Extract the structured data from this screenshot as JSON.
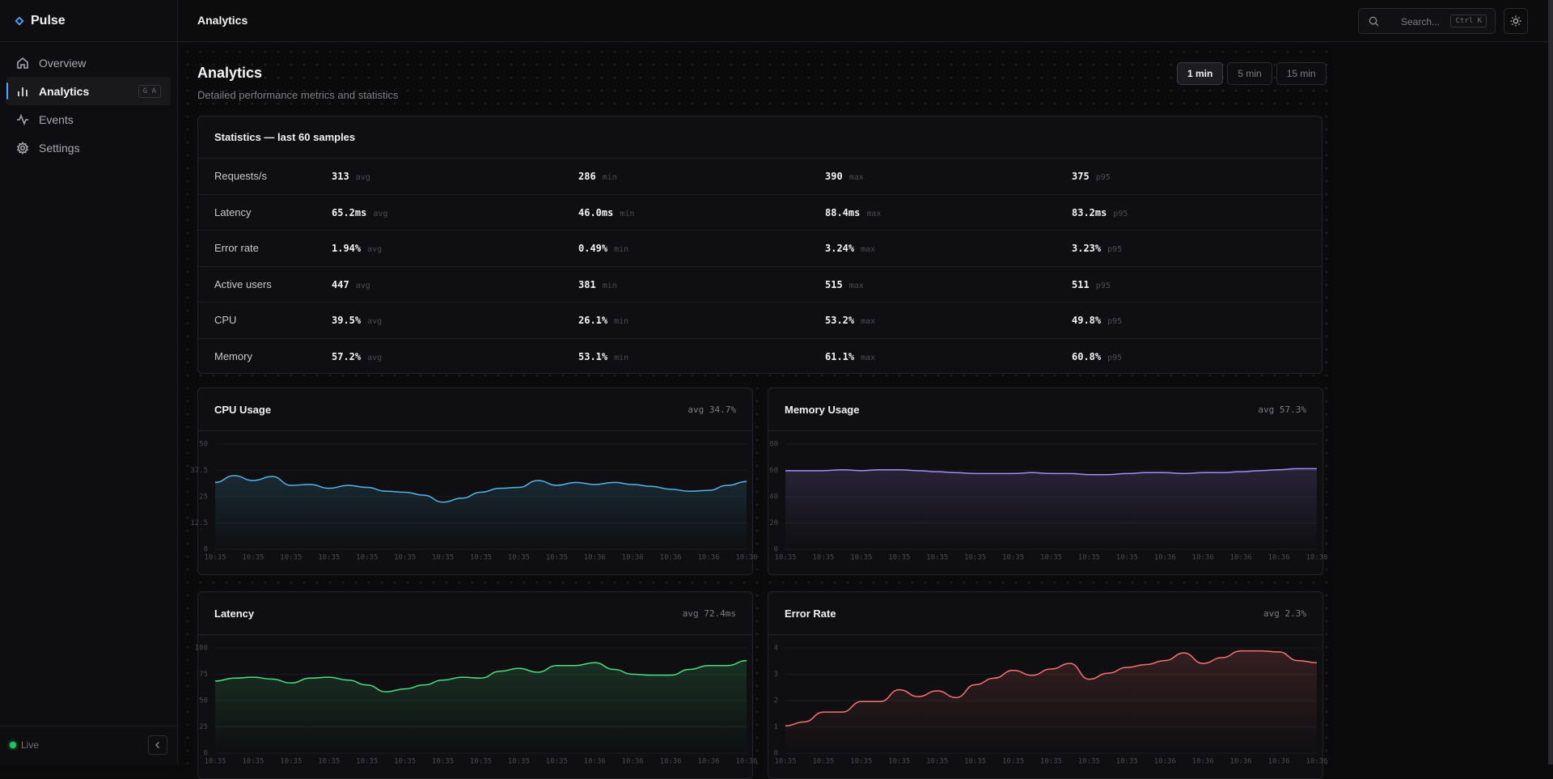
{
  "sidebar": {
    "brand": "Pulse",
    "nav": [
      {
        "label": "Overview"
      },
      {
        "label": "Analytics",
        "shortcut": "G A",
        "active": true
      },
      {
        "label": "Events"
      },
      {
        "label": "Settings"
      }
    ],
    "status": "Live"
  },
  "topbar": {
    "title": "Analytics",
    "search": "Search...",
    "shortcut": "Ctrl K"
  },
  "page": {
    "title": "Analytics",
    "subtitle": "Detailed performance metrics and statistics",
    "ranges": [
      "1 min",
      "5 min",
      "15 min"
    ],
    "selected_range": 0
  },
  "stats": {
    "title": "Statistics — last 60 samples",
    "stat_labels": [
      "avg",
      "min",
      "max",
      "p95"
    ],
    "rows": [
      {
        "label": "Requests/s",
        "values": [
          "313",
          "286",
          "390",
          "375"
        ]
      },
      {
        "label": "Latency",
        "values": [
          "65.2ms",
          "46.0ms",
          "88.4ms",
          "83.2ms"
        ]
      },
      {
        "label": "Error rate",
        "values": [
          "1.94%",
          "0.49%",
          "3.24%",
          "3.23%"
        ]
      },
      {
        "label": "Active users",
        "values": [
          "447",
          "381",
          "515",
          "511"
        ]
      },
      {
        "label": "CPU",
        "values": [
          "39.5%",
          "26.1%",
          "53.2%",
          "49.8%"
        ]
      },
      {
        "label": "Memory",
        "values": [
          "57.2%",
          "53.1%",
          "61.1%",
          "60.8%"
        ]
      }
    ]
  },
  "chart_data": [
    {
      "type": "line",
      "title": "CPU Usage",
      "summary": "avg 34.7%",
      "color": "#4fb6ea",
      "grid": true,
      "categories": [
        "10:35",
        null,
        "10:35",
        null,
        "10:35",
        null,
        "10:35",
        null,
        "10:35",
        null,
        "10:35",
        null,
        "10:35",
        null,
        "10:35",
        null,
        "10:35",
        null,
        "10:35",
        null,
        "10:36",
        null,
        "10:36",
        null,
        "10:36",
        null,
        "10:36",
        null,
        "10:36"
      ],
      "values": [
        31.8,
        35,
        32.7,
        34.6,
        30.4,
        30.8,
        29,
        30.4,
        29.4,
        27.6,
        27.1,
        25.7,
        22.4,
        24.3,
        27.1,
        29,
        29.4,
        32.7,
        30.4,
        31.8,
        30.8,
        31.8,
        30.8,
        29.9,
        28.5,
        27.6,
        28,
        30.4,
        32.2
      ],
      "ylim": [
        0,
        50
      ],
      "yticks": [
        0,
        12.5,
        25,
        37.5,
        50
      ]
    },
    {
      "type": "line",
      "title": "Memory Usage",
      "summary": "avg 57.3%",
      "color": "#a78bfa",
      "grid": true,
      "categories": [
        "10:35",
        null,
        "10:35",
        null,
        "10:35",
        null,
        "10:35",
        null,
        "10:35",
        null,
        "10:35",
        null,
        "10:35",
        null,
        "10:35",
        null,
        "10:35",
        null,
        "10:35",
        null,
        "10:36",
        null,
        "10:36",
        null,
        "10:36",
        null,
        "10:36",
        null,
        "10:36"
      ],
      "values": [
        59.8,
        59.8,
        59.8,
        60.5,
        59.8,
        60.5,
        60.5,
        59.8,
        59,
        58.3,
        57.6,
        57.6,
        57.6,
        58.3,
        57.6,
        57.6,
        56.8,
        56.8,
        57.6,
        58.3,
        58.3,
        57.6,
        58.3,
        58.3,
        59,
        59.8,
        60.5,
        61.3,
        61.3
      ],
      "ylim": [
        0,
        80
      ],
      "yticks": [
        0,
        20,
        40,
        60,
        80
      ]
    },
    {
      "type": "line",
      "title": "Latency",
      "summary": "avg 72.4ms",
      "color": "#4ade80",
      "grid": true,
      "categories": [
        "10:35",
        null,
        "10:35",
        null,
        "10:35",
        null,
        "10:35",
        null,
        "10:35",
        null,
        "10:35",
        null,
        "10:35",
        null,
        "10:35",
        null,
        "10:35",
        null,
        "10:35",
        null,
        "10:36",
        null,
        "10:36",
        null,
        "10:36",
        null,
        "10:36",
        null,
        "10:36"
      ],
      "values": [
        68.5,
        71.3,
        72.2,
        70.4,
        66.7,
        71.3,
        72.2,
        69.4,
        64.8,
        58.3,
        61.1,
        64.8,
        69.4,
        72.2,
        71.3,
        77.8,
        80.6,
        76.9,
        83.3,
        83.3,
        86.1,
        79.6,
        75,
        74.1,
        74.1,
        79.6,
        83.3,
        83.3,
        88
      ],
      "ylim": [
        0,
        100
      ],
      "yticks": [
        0,
        25,
        50,
        75,
        100
      ]
    },
    {
      "type": "line",
      "title": "Error Rate",
      "summary": "avg 2.3%",
      "color": "#f87171",
      "grid": true,
      "categories": [
        "10:35",
        null,
        "10:35",
        null,
        "10:35",
        null,
        "10:35",
        null,
        "10:35",
        null,
        "10:35",
        null,
        "10:35",
        null,
        "10:35",
        null,
        "10:35",
        null,
        "10:35",
        null,
        "10:36",
        null,
        "10:36",
        null,
        "10:36",
        null,
        "10:36",
        null,
        "10:36"
      ],
      "values": [
        1.04,
        1.19,
        1.56,
        1.56,
        1.96,
        1.96,
        2.41,
        2.15,
        2.37,
        2.11,
        2.6,
        2.85,
        3.15,
        2.96,
        3.2,
        3.41,
        2.81,
        3.04,
        3.26,
        3.37,
        3.52,
        3.81,
        3.41,
        3.63,
        3.89,
        3.89,
        3.85,
        3.52,
        3.44
      ],
      "ylim": [
        0,
        4
      ],
      "yticks": [
        0,
        1,
        2,
        3,
        4
      ]
    }
  ]
}
